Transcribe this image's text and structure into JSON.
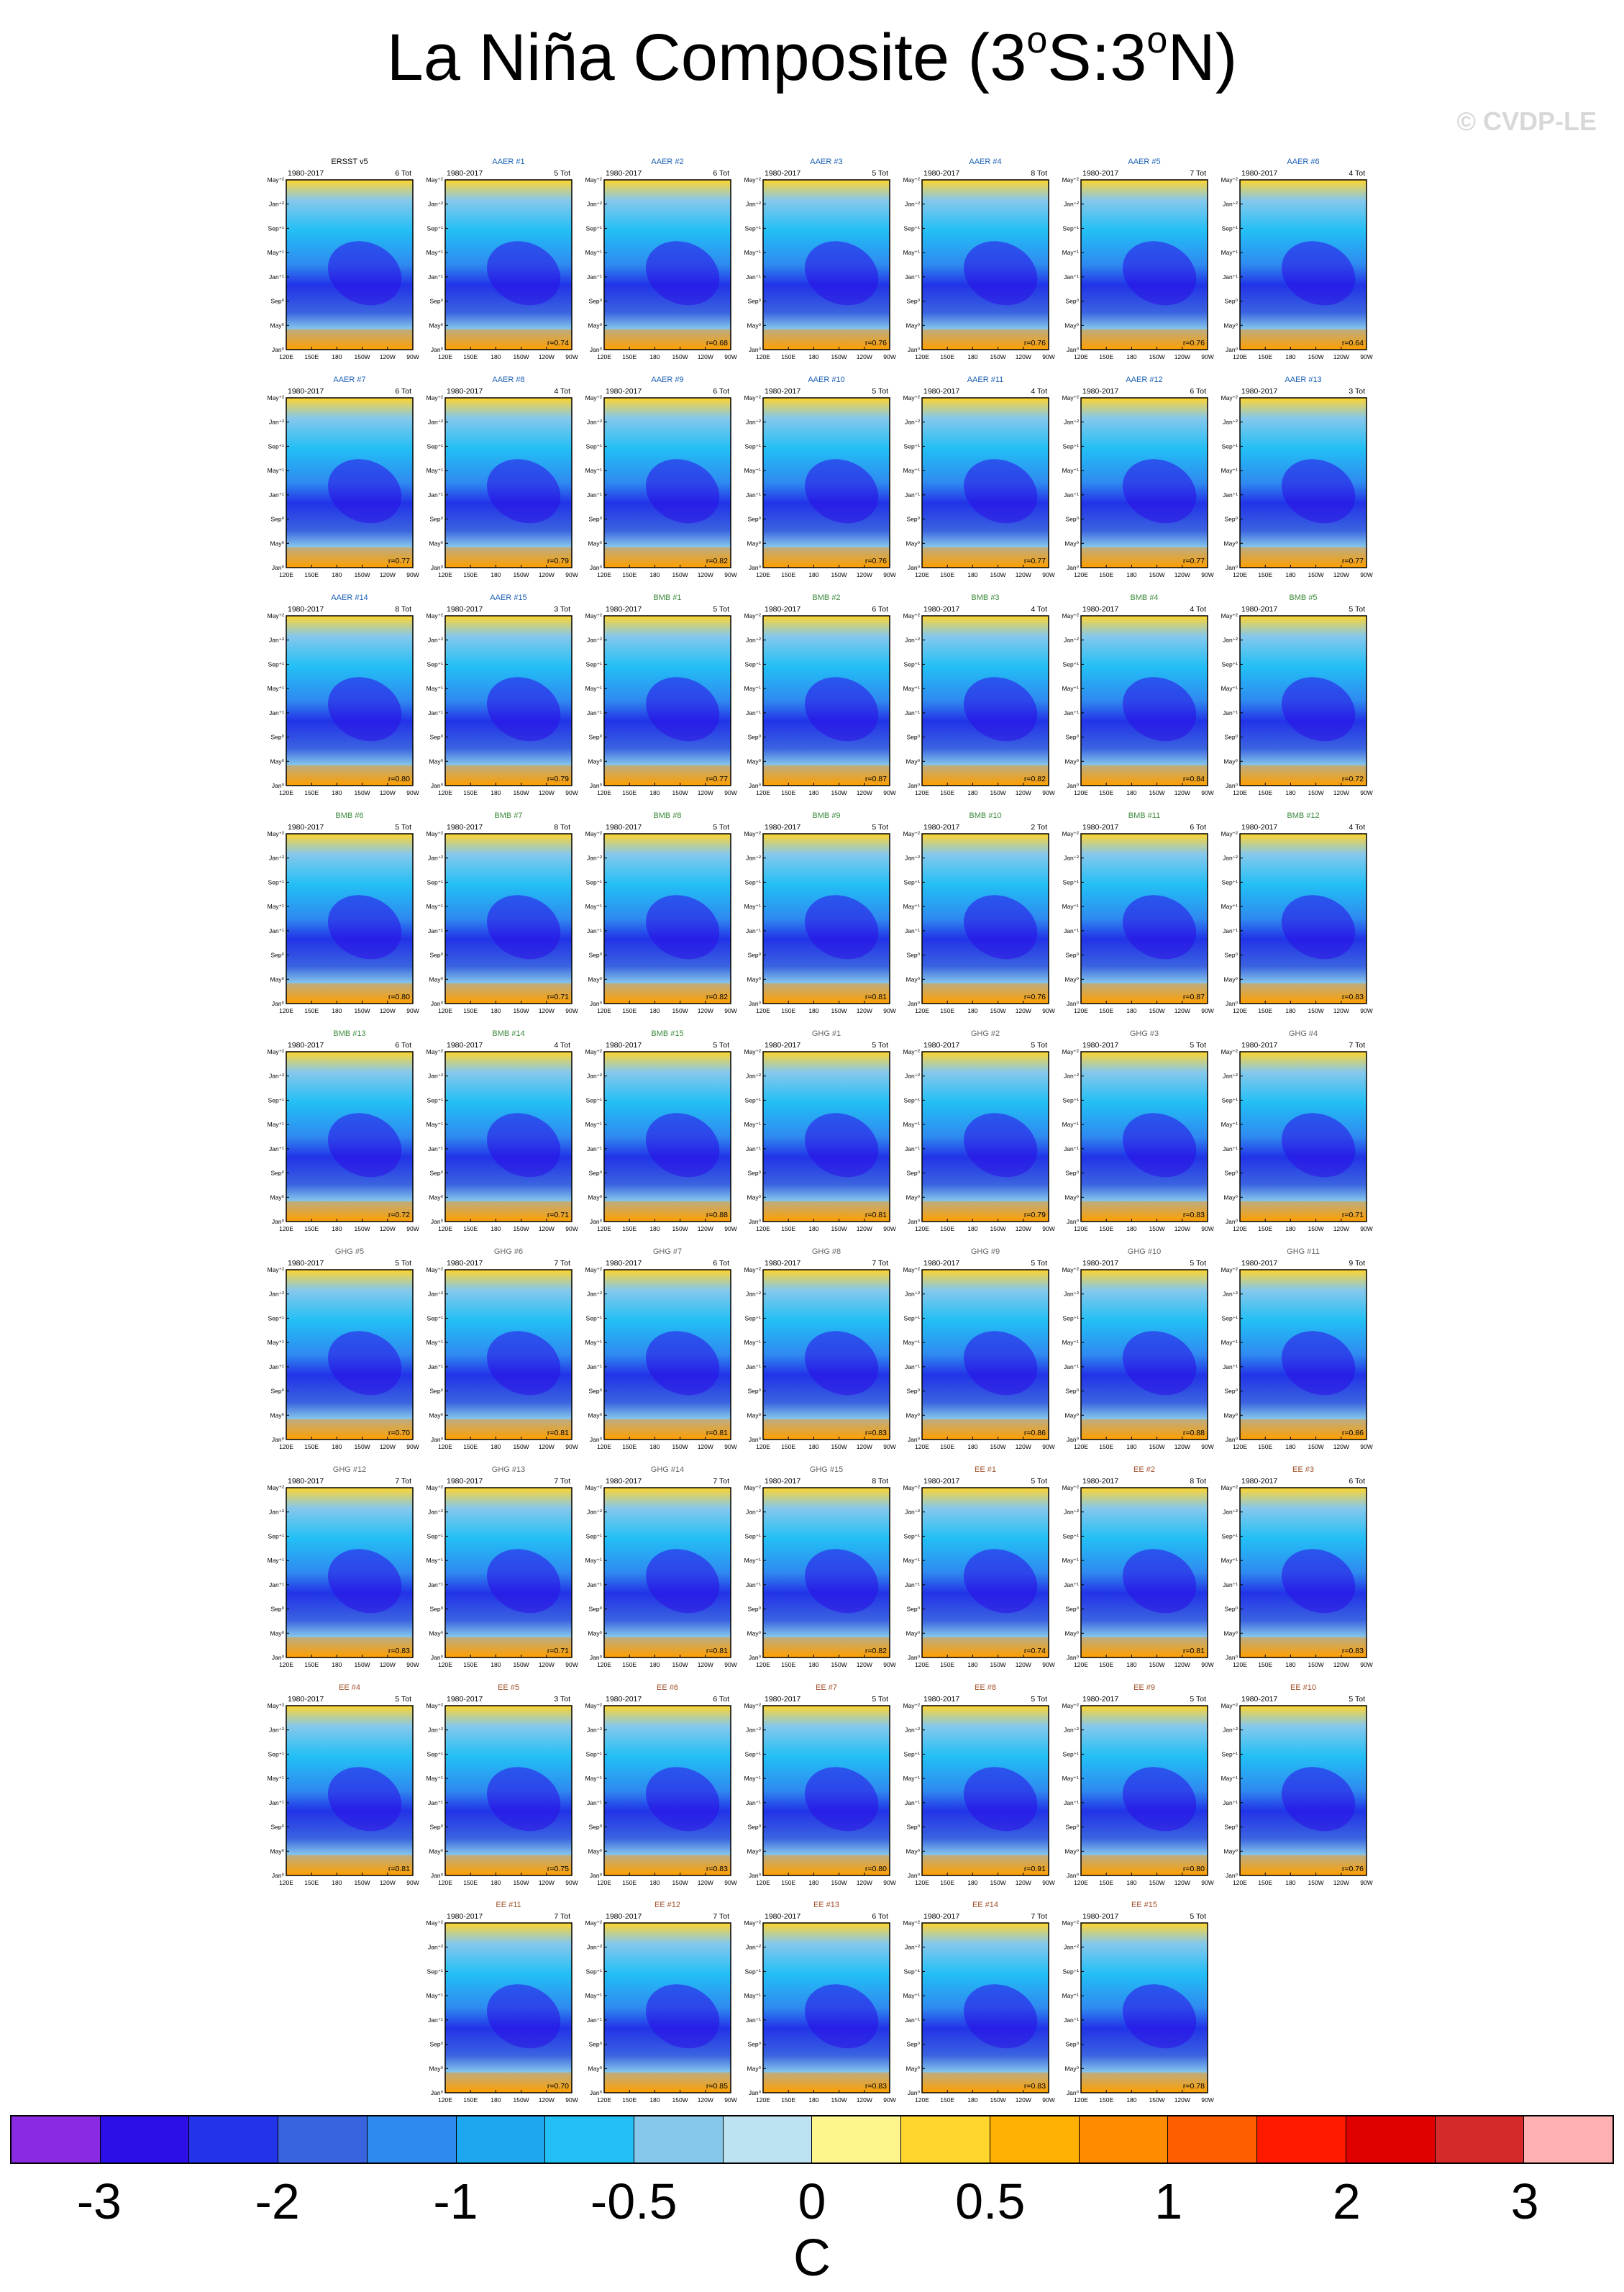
{
  "title": {
    "main": "La Niña Composite (3",
    "deg": "o",
    "mid": "S:3",
    "end": "N)"
  },
  "credit": "© CVDP-LE",
  "panel_common": {
    "period": "1980-2017",
    "ylabels": [
      "May⁺²",
      "Jan⁺²",
      "Sep⁺¹",
      "May⁺¹",
      "Jan⁺¹",
      "Sep⁰",
      "May⁰",
      "Jan⁰"
    ],
    "xlabels": [
      "120E",
      "150E",
      "180",
      "150W",
      "120W",
      "90W"
    ]
  },
  "chart_data": {
    "type": "heatmap",
    "title": "La Niña Composite (3°S:3°N)",
    "units": "C",
    "colorbar": {
      "ticks": [
        "-3",
        "-2",
        "-1",
        "-0.5",
        "0",
        "0.5",
        "1",
        "2",
        "3"
      ],
      "colors": [
        "#8a2be2",
        "#2b0fe6",
        "#2233e8",
        "#3a63e0",
        "#2f8af0",
        "#1ea6ee",
        "#22bff5",
        "#86c8ec",
        "#bde3f2",
        "#fff58f",
        "#ffd52e",
        "#ffb000",
        "#ff8c00",
        "#ff5e00",
        "#ff1a00",
        "#e10000",
        "#d62a2a",
        "#ffb0b0"
      ]
    },
    "panels": [
      {
        "name": "ERSST v5",
        "count": "6 Tot",
        "r": "",
        "group": "obs"
      },
      {
        "name": "AAER #1",
        "count": "5 Tot",
        "r": "r=0.74",
        "group": "AAER"
      },
      {
        "name": "AAER #2",
        "count": "6 Tot",
        "r": "r=0.68",
        "group": "AAER"
      },
      {
        "name": "AAER #3",
        "count": "5 Tot",
        "r": "r=0.76",
        "group": "AAER"
      },
      {
        "name": "AAER #4",
        "count": "8 Tot",
        "r": "r=0.76",
        "group": "AAER"
      },
      {
        "name": "AAER #5",
        "count": "7 Tot",
        "r": "r=0.76",
        "group": "AAER"
      },
      {
        "name": "AAER #6",
        "count": "4 Tot",
        "r": "r=0.64",
        "group": "AAER"
      },
      {
        "name": "AAER #7",
        "count": "6 Tot",
        "r": "r=0.77",
        "group": "AAER"
      },
      {
        "name": "AAER #8",
        "count": "4 Tot",
        "r": "r=0.79",
        "group": "AAER"
      },
      {
        "name": "AAER #9",
        "count": "6 Tot",
        "r": "r=0.82",
        "group": "AAER"
      },
      {
        "name": "AAER #10",
        "count": "5 Tot",
        "r": "r=0.76",
        "group": "AAER"
      },
      {
        "name": "AAER #11",
        "count": "4 Tot",
        "r": "r=0.77",
        "group": "AAER"
      },
      {
        "name": "AAER #12",
        "count": "6 Tot",
        "r": "r=0.77",
        "group": "AAER"
      },
      {
        "name": "AAER #13",
        "count": "3 Tot",
        "r": "r=0.77",
        "group": "AAER"
      },
      {
        "name": "AAER #14",
        "count": "8 Tot",
        "r": "r=0.80",
        "group": "AAER"
      },
      {
        "name": "AAER #15",
        "count": "3 Tot",
        "r": "r=0.79",
        "group": "AAER"
      },
      {
        "name": "BMB #1",
        "count": "5 Tot",
        "r": "r=0.77",
        "group": "BMB"
      },
      {
        "name": "BMB #2",
        "count": "6 Tot",
        "r": "r=0.87",
        "group": "BMB"
      },
      {
        "name": "BMB #3",
        "count": "4 Tot",
        "r": "r=0.82",
        "group": "BMB"
      },
      {
        "name": "BMB #4",
        "count": "4 Tot",
        "r": "r=0.84",
        "group": "BMB"
      },
      {
        "name": "BMB #5",
        "count": "5 Tot",
        "r": "r=0.72",
        "group": "BMB"
      },
      {
        "name": "BMB #6",
        "count": "5 Tot",
        "r": "r=0.80",
        "group": "BMB"
      },
      {
        "name": "BMB #7",
        "count": "8 Tot",
        "r": "r=0.71",
        "group": "BMB"
      },
      {
        "name": "BMB #8",
        "count": "5 Tot",
        "r": "r=0.82",
        "group": "BMB"
      },
      {
        "name": "BMB #9",
        "count": "5 Tot",
        "r": "r=0.81",
        "group": "BMB"
      },
      {
        "name": "BMB #10",
        "count": "2 Tot",
        "r": "r=0.76",
        "group": "BMB"
      },
      {
        "name": "BMB #11",
        "count": "6 Tot",
        "r": "r=0.87",
        "group": "BMB"
      },
      {
        "name": "BMB #12",
        "count": "4 Tot",
        "r": "r=0.83",
        "group": "BMB"
      },
      {
        "name": "BMB #13",
        "count": "6 Tot",
        "r": "r=0.72",
        "group": "BMB"
      },
      {
        "name": "BMB #14",
        "count": "4 Tot",
        "r": "r=0.71",
        "group": "BMB"
      },
      {
        "name": "BMB #15",
        "count": "5 Tot",
        "r": "r=0.88",
        "group": "BMB"
      },
      {
        "name": "GHG #1",
        "count": "5 Tot",
        "r": "r=0.81",
        "group": "GHG"
      },
      {
        "name": "GHG #2",
        "count": "5 Tot",
        "r": "r=0.79",
        "group": "GHG"
      },
      {
        "name": "GHG #3",
        "count": "5 Tot",
        "r": "r=0.83",
        "group": "GHG"
      },
      {
        "name": "GHG #4",
        "count": "7 Tot",
        "r": "r=0.71",
        "group": "GHG"
      },
      {
        "name": "GHG #5",
        "count": "5 Tot",
        "r": "r=0.70",
        "group": "GHG"
      },
      {
        "name": "GHG #6",
        "count": "7 Tot",
        "r": "r=0.81",
        "group": "GHG"
      },
      {
        "name": "GHG #7",
        "count": "6 Tot",
        "r": "r=0.81",
        "group": "GHG"
      },
      {
        "name": "GHG #8",
        "count": "7 Tot",
        "r": "r=0.83",
        "group": "GHG"
      },
      {
        "name": "GHG #9",
        "count": "5 Tot",
        "r": "r=0.86",
        "group": "GHG"
      },
      {
        "name": "GHG #10",
        "count": "5 Tot",
        "r": "r=0.88",
        "group": "GHG"
      },
      {
        "name": "GHG #11",
        "count": "9 Tot",
        "r": "r=0.86",
        "group": "GHG"
      },
      {
        "name": "GHG #12",
        "count": "7 Tot",
        "r": "r=0.83",
        "group": "GHG"
      },
      {
        "name": "GHG #13",
        "count": "7 Tot",
        "r": "r=0.71",
        "group": "GHG"
      },
      {
        "name": "GHG #14",
        "count": "7 Tot",
        "r": "r=0.81",
        "group": "GHG"
      },
      {
        "name": "GHG #15",
        "count": "8 Tot",
        "r": "r=0.82",
        "group": "GHG"
      },
      {
        "name": "EE #1",
        "count": "5 Tot",
        "r": "r=0.74",
        "group": "EE"
      },
      {
        "name": "EE #2",
        "count": "8 Tot",
        "r": "r=0.81",
        "group": "EE"
      },
      {
        "name": "EE #3",
        "count": "6 Tot",
        "r": "r=0.83",
        "group": "EE"
      },
      {
        "name": "EE #4",
        "count": "5 Tot",
        "r": "r=0.81",
        "group": "EE"
      },
      {
        "name": "EE #5",
        "count": "3 Tot",
        "r": "r=0.75",
        "group": "EE"
      },
      {
        "name": "EE #6",
        "count": "6 Tot",
        "r": "r=0.83",
        "group": "EE"
      },
      {
        "name": "EE #7",
        "count": "5 Tot",
        "r": "r=0.80",
        "group": "EE"
      },
      {
        "name": "EE #8",
        "count": "5 Tot",
        "r": "r=0.91",
        "group": "EE"
      },
      {
        "name": "EE #9",
        "count": "5 Tot",
        "r": "r=0.80",
        "group": "EE"
      },
      {
        "name": "EE #10",
        "count": "5 Tot",
        "r": "r=0.76",
        "group": "EE"
      },
      {
        "name": "EE #11",
        "count": "7 Tot",
        "r": "r=0.70",
        "group": "EE"
      },
      {
        "name": "EE #12",
        "count": "7 Tot",
        "r": "r=0.85",
        "group": "EE"
      },
      {
        "name": "EE #13",
        "count": "6 Tot",
        "r": "r=0.83",
        "group": "EE"
      },
      {
        "name": "EE #14",
        "count": "7 Tot",
        "r": "r=0.83",
        "group": "EE"
      },
      {
        "name": "EE #15",
        "count": "5 Tot",
        "r": "r=0.78",
        "group": "EE"
      }
    ]
  },
  "group_colors": {
    "obs": "#000000",
    "AAER": "#1a5fb4",
    "BMB": "#3d8a3d",
    "GHG": "#666666",
    "EE": "#a0522d"
  }
}
